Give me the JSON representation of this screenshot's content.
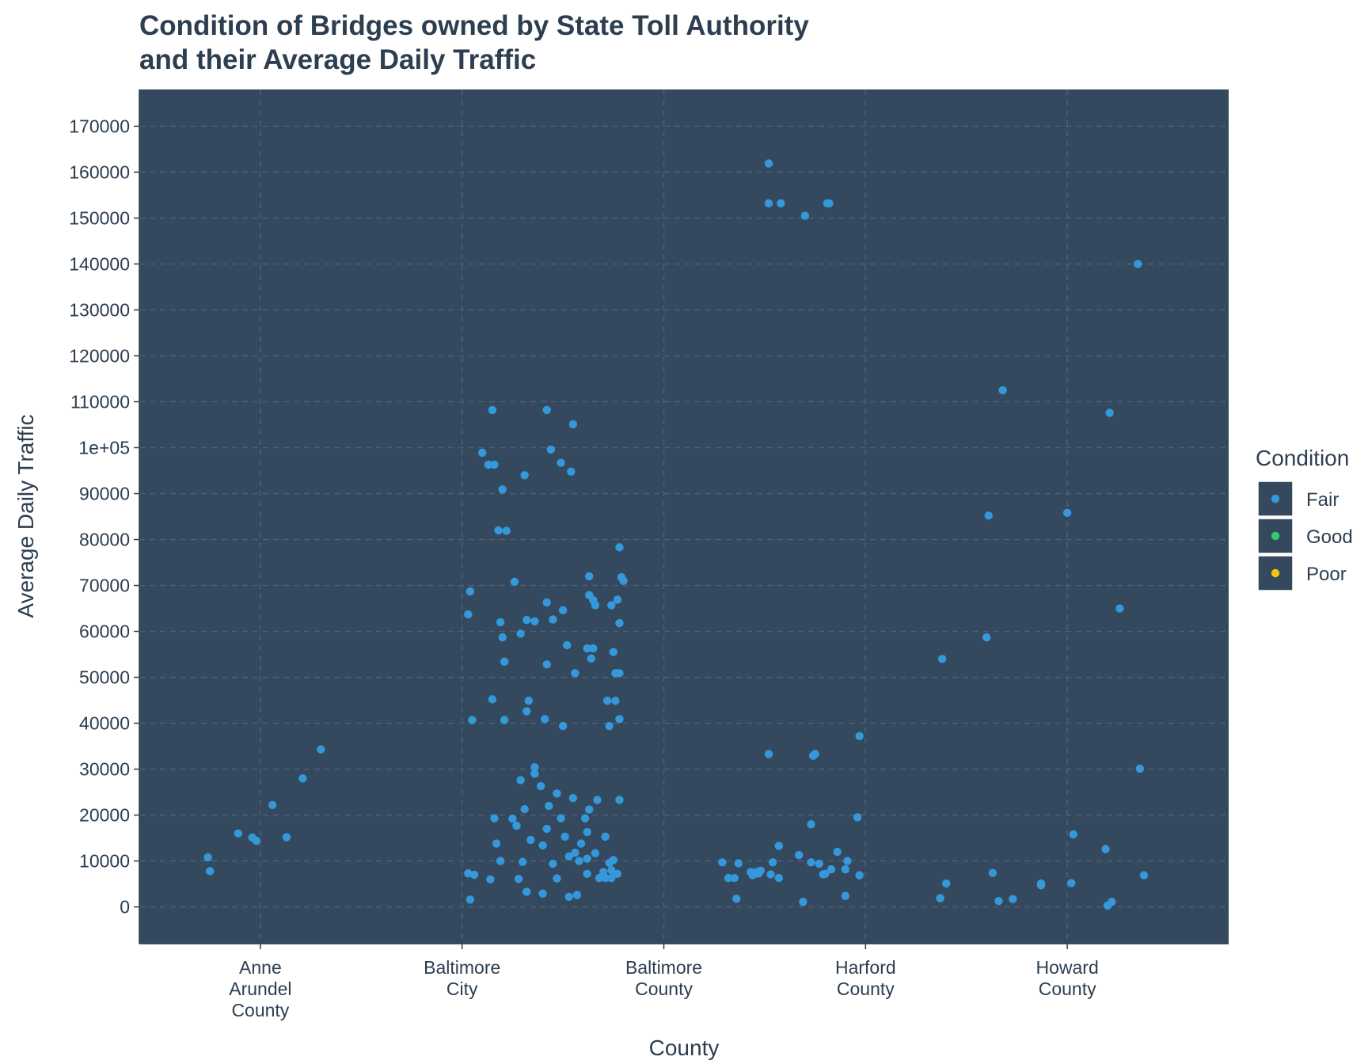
{
  "chart_data": {
    "type": "scatter",
    "title": "Condition of Bridges owned by State Toll Authority",
    "subtitle": "and their Average Daily Traffic",
    "xlabel": "County",
    "ylabel": "Average Daily Traffic",
    "ylim": [
      -8000,
      178000
    ],
    "y_ticks": [
      0,
      10000,
      20000,
      30000,
      40000,
      50000,
      60000,
      70000,
      80000,
      90000,
      100000,
      110000,
      120000,
      130000,
      140000,
      150000,
      160000,
      170000
    ],
    "y_tick_labels": [
      "0",
      "10000",
      "20000",
      "30000",
      "40000",
      "50000",
      "60000",
      "70000",
      "80000",
      "90000",
      "1e+05",
      "110000",
      "120000",
      "130000",
      "140000",
      "150000",
      "160000",
      "170000"
    ],
    "categories": [
      "Anne Arundel County",
      "Baltimore City",
      "Baltimore County",
      "Harford County",
      "Howard County"
    ],
    "category_labels": [
      [
        "Anne",
        "Arundel",
        "County"
      ],
      [
        "Baltimore",
        "City"
      ],
      [
        "Baltimore",
        "County"
      ],
      [
        "Harford",
        "County"
      ],
      [
        "Howard",
        "County"
      ]
    ],
    "grid": true,
    "panel_background": "#34495e",
    "legend": {
      "title": "Condition",
      "position": "right",
      "entries": [
        {
          "label": "Fair",
          "color": "#3498db"
        },
        {
          "label": "Good",
          "color": "#2ecc71"
        },
        {
          "label": "Poor",
          "color": "#f1c40f"
        }
      ]
    },
    "series": [
      {
        "name": "Fair",
        "color": "#3498db",
        "points": [
          {
            "x": 0.74,
            "y": 10800
          },
          {
            "x": 0.75,
            "y": 7800
          },
          {
            "x": 0.89,
            "y": 16000
          },
          {
            "x": 0.96,
            "y": 15100
          },
          {
            "x": 0.98,
            "y": 14400
          },
          {
            "x": 1.06,
            "y": 22200
          },
          {
            "x": 1.13,
            "y": 15200
          },
          {
            "x": 1.21,
            "y": 28000
          },
          {
            "x": 1.3,
            "y": 34300
          },
          {
            "x": 2.03,
            "y": 7300
          },
          {
            "x": 2.03,
            "y": 63700
          },
          {
            "x": 2.04,
            "y": 68700
          },
          {
            "x": 2.04,
            "y": 1600
          },
          {
            "x": 2.05,
            "y": 40700
          },
          {
            "x": 2.06,
            "y": 7000
          },
          {
            "x": 2.1,
            "y": 98900
          },
          {
            "x": 2.13,
            "y": 96300
          },
          {
            "x": 2.14,
            "y": 6000
          },
          {
            "x": 2.15,
            "y": 108200
          },
          {
            "x": 2.15,
            "y": 45200
          },
          {
            "x": 2.16,
            "y": 96300
          },
          {
            "x": 2.16,
            "y": 19300
          },
          {
            "x": 2.17,
            "y": 13800
          },
          {
            "x": 2.18,
            "y": 82000
          },
          {
            "x": 2.19,
            "y": 62000
          },
          {
            "x": 2.19,
            "y": 10000
          },
          {
            "x": 2.2,
            "y": 90900
          },
          {
            "x": 2.2,
            "y": 58700
          },
          {
            "x": 2.21,
            "y": 53400
          },
          {
            "x": 2.21,
            "y": 40700
          },
          {
            "x": 2.22,
            "y": 81900
          },
          {
            "x": 2.25,
            "y": 19200
          },
          {
            "x": 2.26,
            "y": 70800
          },
          {
            "x": 2.27,
            "y": 17700
          },
          {
            "x": 2.28,
            "y": 6100
          },
          {
            "x": 2.29,
            "y": 59500
          },
          {
            "x": 2.29,
            "y": 27600
          },
          {
            "x": 2.3,
            "y": 9800
          },
          {
            "x": 2.31,
            "y": 94000
          },
          {
            "x": 2.31,
            "y": 21300
          },
          {
            "x": 2.32,
            "y": 62500
          },
          {
            "x": 2.32,
            "y": 42600
          },
          {
            "x": 2.32,
            "y": 3300
          },
          {
            "x": 2.33,
            "y": 44900
          },
          {
            "x": 2.34,
            "y": 14600
          },
          {
            "x": 2.36,
            "y": 62200
          },
          {
            "x": 2.36,
            "y": 30400
          },
          {
            "x": 2.36,
            "y": 29000
          },
          {
            "x": 2.39,
            "y": 26300
          },
          {
            "x": 2.4,
            "y": 13400
          },
          {
            "x": 2.4,
            "y": 2900
          },
          {
            "x": 2.41,
            "y": 40900
          },
          {
            "x": 2.42,
            "y": 108200
          },
          {
            "x": 2.42,
            "y": 66300
          },
          {
            "x": 2.42,
            "y": 52800
          },
          {
            "x": 2.42,
            "y": 17000
          },
          {
            "x": 2.43,
            "y": 22000
          },
          {
            "x": 2.44,
            "y": 99600
          },
          {
            "x": 2.45,
            "y": 62600
          },
          {
            "x": 2.45,
            "y": 9400
          },
          {
            "x": 2.47,
            "y": 24700
          },
          {
            "x": 2.47,
            "y": 6200
          },
          {
            "x": 2.49,
            "y": 96700
          },
          {
            "x": 2.49,
            "y": 19300
          },
          {
            "x": 2.5,
            "y": 64600
          },
          {
            "x": 2.5,
            "y": 39400
          },
          {
            "x": 2.51,
            "y": 15300
          },
          {
            "x": 2.52,
            "y": 57000
          },
          {
            "x": 2.53,
            "y": 11000
          },
          {
            "x": 2.53,
            "y": 2200
          },
          {
            "x": 2.54,
            "y": 94800
          },
          {
            "x": 2.55,
            "y": 105100
          },
          {
            "x": 2.55,
            "y": 23700
          },
          {
            "x": 2.56,
            "y": 50900
          },
          {
            "x": 2.56,
            "y": 11800
          },
          {
            "x": 2.57,
            "y": 2600
          },
          {
            "x": 2.58,
            "y": 10000
          },
          {
            "x": 2.59,
            "y": 13800
          },
          {
            "x": 2.61,
            "y": 19300
          },
          {
            "x": 2.62,
            "y": 16300
          },
          {
            "x": 2.62,
            "y": 7200
          },
          {
            "x": 2.62,
            "y": 10500
          },
          {
            "x": 2.62,
            "y": 56300
          },
          {
            "x": 2.63,
            "y": 67900
          },
          {
            "x": 2.63,
            "y": 72000
          },
          {
            "x": 2.63,
            "y": 21200
          },
          {
            "x": 2.64,
            "y": 54100
          },
          {
            "x": 2.65,
            "y": 66800
          },
          {
            "x": 2.65,
            "y": 56300
          },
          {
            "x": 2.66,
            "y": 65700
          },
          {
            "x": 2.66,
            "y": 11700
          },
          {
            "x": 2.67,
            "y": 23300
          },
          {
            "x": 2.68,
            "y": 6300
          },
          {
            "x": 2.7,
            "y": 7600
          },
          {
            "x": 2.71,
            "y": 15300
          },
          {
            "x": 2.71,
            "y": 6300
          },
          {
            "x": 2.72,
            "y": 44900
          },
          {
            "x": 2.73,
            "y": 39400
          },
          {
            "x": 2.73,
            "y": 9600
          },
          {
            "x": 2.74,
            "y": 6300
          },
          {
            "x": 2.74,
            "y": 65700
          },
          {
            "x": 2.74,
            "y": 8000
          },
          {
            "x": 2.75,
            "y": 10200
          },
          {
            "x": 2.75,
            "y": 55500
          },
          {
            "x": 2.76,
            "y": 44900
          },
          {
            "x": 2.76,
            "y": 50900
          },
          {
            "x": 2.77,
            "y": 7200
          },
          {
            "x": 2.77,
            "y": 66900
          },
          {
            "x": 2.78,
            "y": 50900
          },
          {
            "x": 2.78,
            "y": 78300
          },
          {
            "x": 2.78,
            "y": 40900
          },
          {
            "x": 2.78,
            "y": 23300
          },
          {
            "x": 2.78,
            "y": 61800
          },
          {
            "x": 2.79,
            "y": 71800
          },
          {
            "x": 2.8,
            "y": 71000
          },
          {
            "x": 3.29,
            "y": 9700
          },
          {
            "x": 3.32,
            "y": 6300
          },
          {
            "x": 3.35,
            "y": 6300
          },
          {
            "x": 3.36,
            "y": 1800
          },
          {
            "x": 3.37,
            "y": 9500
          },
          {
            "x": 3.43,
            "y": 7600
          },
          {
            "x": 3.44,
            "y": 6900
          },
          {
            "x": 3.45,
            "y": 7200
          },
          {
            "x": 3.46,
            "y": 7600
          },
          {
            "x": 3.47,
            "y": 7300
          },
          {
            "x": 3.48,
            "y": 7900
          },
          {
            "x": 3.52,
            "y": 33300
          },
          {
            "x": 3.52,
            "y": 161900
          },
          {
            "x": 3.52,
            "y": 153200
          },
          {
            "x": 3.53,
            "y": 7100
          },
          {
            "x": 3.54,
            "y": 9700
          },
          {
            "x": 3.57,
            "y": 6300
          },
          {
            "x": 3.57,
            "y": 13300
          },
          {
            "x": 3.58,
            "y": 153200
          },
          {
            "x": 3.67,
            "y": 11300
          },
          {
            "x": 3.69,
            "y": 1100
          },
          {
            "x": 3.7,
            "y": 150500
          },
          {
            "x": 3.73,
            "y": 9700
          },
          {
            "x": 3.73,
            "y": 18000
          },
          {
            "x": 3.74,
            "y": 32900
          },
          {
            "x": 3.75,
            "y": 33300
          },
          {
            "x": 3.77,
            "y": 9400
          },
          {
            "x": 3.79,
            "y": 7100
          },
          {
            "x": 3.8,
            "y": 7200
          },
          {
            "x": 3.81,
            "y": 153200
          },
          {
            "x": 3.82,
            "y": 153200
          },
          {
            "x": 3.83,
            "y": 8200
          },
          {
            "x": 3.86,
            "y": 12000
          },
          {
            "x": 3.9,
            "y": 8200
          },
          {
            "x": 3.9,
            "y": 2400
          },
          {
            "x": 3.91,
            "y": 10000
          },
          {
            "x": 3.96,
            "y": 19500
          },
          {
            "x": 3.97,
            "y": 6900
          },
          {
            "x": 3.97,
            "y": 37200
          },
          {
            "x": 4.37,
            "y": 1900
          },
          {
            "x": 4.38,
            "y": 54000
          },
          {
            "x": 4.4,
            "y": 5100
          },
          {
            "x": 4.6,
            "y": 58700
          },
          {
            "x": 4.61,
            "y": 85200
          },
          {
            "x": 4.63,
            "y": 7400
          },
          {
            "x": 4.66,
            "y": 1300
          },
          {
            "x": 4.68,
            "y": 112500
          },
          {
            "x": 4.73,
            "y": 1700
          },
          {
            "x": 5.0,
            "y": 85800
          },
          {
            "x": 5.03,
            "y": 15800
          },
          {
            "x": 5.19,
            "y": 12600
          },
          {
            "x": 5.2,
            "y": 300
          },
          {
            "x": 5.21,
            "y": 107600
          },
          {
            "x": 5.22,
            "y": 1100
          },
          {
            "x": 5.26,
            "y": 65000
          },
          {
            "x": 5.35,
            "y": 140000
          },
          {
            "x": 5.36,
            "y": 30100
          },
          {
            "x": 5.38,
            "y": 6900
          },
          {
            "x": 4.87,
            "y": 5100
          },
          {
            "x": 4.87,
            "y": 4700
          },
          {
            "x": 5.02,
            "y": 5200
          }
        ]
      }
    ]
  }
}
